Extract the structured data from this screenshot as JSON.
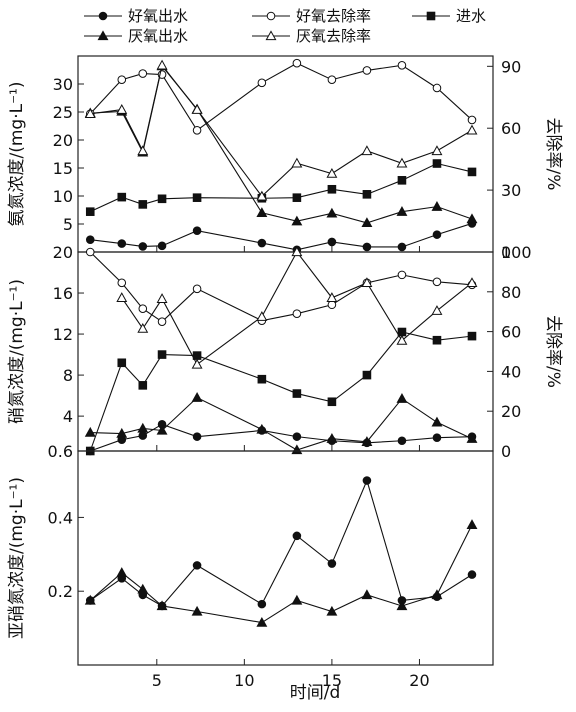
{
  "chart_data": {
    "type": "line",
    "xlabel": "时间/d",
    "xticks": [
      5,
      10,
      15,
      20
    ],
    "xlim": [
      0.5,
      24.2
    ],
    "legend": {
      "placement": "top",
      "entries": [
        {
          "label": "好氧出水",
          "marker": "circle-filled"
        },
        {
          "label": "好氧去除率",
          "marker": "circle-open"
        },
        {
          "label": "进水",
          "marker": "square-filled"
        },
        {
          "label": "厌氧出水",
          "marker": "triangle-filled"
        },
        {
          "label": "厌氧去除率",
          "marker": "triangle-open"
        }
      ]
    },
    "panels": [
      {
        "id": "ammonia",
        "ylabel": "氨氮浓度/(mg·L⁻¹)",
        "ylim": [
          0,
          35
        ],
        "yticks": [
          5,
          10,
          15,
          20,
          25,
          30
        ],
        "y2label": "去除率/%",
        "y2lim": [
          0,
          95
        ],
        "y2ticks": [
          0,
          30,
          60,
          90
        ],
        "series": [
          {
            "name": "进水",
            "marker": "square-filled",
            "axis": "left",
            "x": [
              1.2,
              3,
              4.2,
              5.3,
              7.3,
              11,
              13,
              15,
              17,
              19,
              21,
              23
            ],
            "y": [
              7.2,
              9.8,
              8.5,
              9.5,
              9.7,
              9.6,
              9.7,
              11.2,
              10.3,
              12.8,
              15.8,
              14.3
            ]
          },
          {
            "name": "好氧出水",
            "marker": "circle-filled",
            "axis": "left",
            "x": [
              1.2,
              3,
              4.2,
              5.3,
              7.3,
              11,
              13,
              15,
              17,
              19,
              21,
              23
            ],
            "y": [
              2.2,
              1.5,
              1,
              1.1,
              3.8,
              1.6,
              0.4,
              1.8,
              0.9,
              0.9,
              3.1,
              5.1
            ]
          },
          {
            "name": "厌氧出水",
            "marker": "triangle-filled",
            "axis": "left",
            "x": [
              1.2,
              3,
              4.2,
              5.3,
              7.3,
              11,
              13,
              15,
              17,
              19,
              21,
              23
            ],
            "y": [
              24.8,
              25.1,
              17.8,
              33.2,
              25.5,
              7,
              5.5,
              6.9,
              5.2,
              7.2,
              8.1,
              5.9
            ]
          },
          {
            "name": "好氧去除率",
            "marker": "circle-open",
            "axis": "right",
            "x": [
              1.2,
              3,
              4.2,
              5.3,
              7.3,
              11,
              13,
              15,
              17,
              19,
              21,
              23
            ],
            "y": [
              67,
              83.5,
              86.5,
              86,
              59,
              82,
              91.5,
              83.5,
              88,
              90.5,
              79.5,
              64
            ]
          },
          {
            "name": "厌氧去除率",
            "marker": "triangle-open",
            "axis": "right",
            "x": [
              1.2,
              3,
              4.2,
              5.3,
              7.3,
              11,
              13,
              15,
              17,
              19,
              21,
              23
            ],
            "y": [
              67,
              69,
              49,
              90.5,
              69,
              27,
              43,
              38,
              49,
              43,
              49,
              59
            ]
          }
        ]
      },
      {
        "id": "nitrate",
        "ylabel": "硝氮浓度/(mg·L⁻¹)",
        "ylim": [
          0.6,
          20
        ],
        "yticks": [
          0.6,
          4,
          8,
          12,
          16,
          20
        ],
        "y2label": "去除率/%",
        "y2lim": [
          0,
          100
        ],
        "y2ticks": [
          0,
          20,
          40,
          60,
          80,
          100
        ],
        "series": [
          {
            "name": "进水",
            "marker": "square-filled",
            "axis": "left",
            "x": [
              1.2,
              3,
              4.2,
              5.3,
              7.3,
              11,
              13,
              15,
              17,
              19,
              21,
              23
            ],
            "y": [
              0.6,
              9.2,
              7,
              10,
              9.9,
              7.6,
              6.2,
              5.4,
              8,
              12.2,
              11.4,
              11.8
            ]
          },
          {
            "name": "好氧出水",
            "marker": "circle-filled",
            "axis": "left",
            "x": [
              1.2,
              3,
              4.2,
              5.3,
              7.3,
              11,
              13,
              15,
              17,
              19,
              21,
              23
            ],
            "y": [
              0.6,
              1.7,
              2.1,
              3.2,
              2.0,
              2.6,
              2.0,
              1.6,
              1.4,
              1.6,
              1.9,
              2.0
            ]
          },
          {
            "name": "厌氧出水",
            "marker": "triangle-filled",
            "axis": "left",
            "x": [
              1.2,
              3,
              4.2,
              5.3,
              7.3,
              11,
              13,
              15,
              17,
              19,
              21,
              23
            ],
            "y": [
              2.4,
              2.3,
              2.8,
              2.6,
              5.8,
              2.7,
              0.7,
              1.8,
              1.5,
              5.7,
              3.4,
              1.8
            ]
          },
          {
            "name": "好氧去除率",
            "marker": "circle-open",
            "axis": "right",
            "x": [
              1.2,
              3,
              4.2,
              5.3,
              7.3,
              11,
              13,
              15,
              17,
              19,
              21,
              23
            ],
            "y": [
              100,
              84.5,
              71.5,
              65,
              81.5,
              65.5,
              69,
              73.5,
              84.5,
              88.5,
              85,
              83.5
            ]
          },
          {
            "name": "厌氧去除率",
            "marker": "triangle-open",
            "axis": "right",
            "x": [
              3,
              4.2,
              5.3,
              7.3,
              11,
              13,
              15,
              17,
              19,
              21,
              23
            ],
            "y": [
              77,
              61.5,
              76.5,
              43.5,
              67.5,
              100,
              77,
              84.5,
              55.5,
              70.5,
              84.5
            ]
          }
        ]
      },
      {
        "id": "nitrite",
        "ylabel": "亚硝氮浓度/(mg·L⁻¹)",
        "ylim": [
          0,
          0.58
        ],
        "yticks": [
          0.2,
          0.4
        ],
        "series": [
          {
            "name": "好氧出水",
            "marker": "circle-filled",
            "axis": "left",
            "x": [
              1.2,
              3,
              4.2,
              5.3,
              7.3,
              11,
              13,
              15,
              17,
              19,
              21,
              23
            ],
            "y": [
              0.175,
              0.235,
              0.19,
              0.16,
              0.27,
              0.165,
              0.35,
              0.275,
              0.5,
              0.175,
              0.185,
              0.245
            ]
          },
          {
            "name": "厌氧出水",
            "marker": "triangle-filled",
            "axis": "left",
            "x": [
              1.2,
              3,
              4.2,
              5.3,
              7.3,
              11,
              13,
              15,
              17,
              19,
              21,
              23
            ],
            "y": [
              0.175,
              0.25,
              0.205,
              0.16,
              0.145,
              0.115,
              0.175,
              0.145,
              0.19,
              0.16,
              0.19,
              0.38
            ]
          }
        ]
      }
    ]
  }
}
